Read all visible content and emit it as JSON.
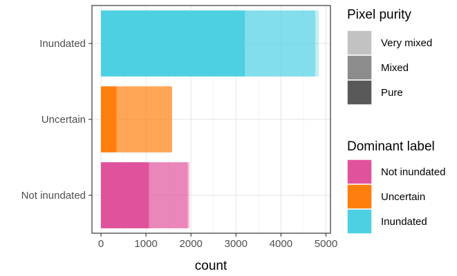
{
  "chart_data": {
    "type": "bar",
    "orientation": "horizontal",
    "stacked": true,
    "categories": [
      "Not inundated",
      "Uncertain",
      "Inundated"
    ],
    "series": [
      {
        "name": "Pure",
        "values": [
          1070,
          350,
          3200
        ]
      },
      {
        "name": "Mixed",
        "values": [
          860,
          1230,
          1560
        ]
      },
      {
        "name": "Very mixed",
        "values": [
          40,
          0,
          80
        ]
      }
    ],
    "xlabel": "count",
    "ylabel": "",
    "xlim": [
      -200,
      5100
    ],
    "xticks": [
      0,
      1000,
      2000,
      3000,
      4000,
      5000
    ],
    "xtick_labels": [
      "0",
      "1000",
      "2000",
      "3000",
      "4000",
      "5000"
    ],
    "grid": true,
    "category_colors": {
      "Not inundated": "#e0529c",
      "Uncertain": "#ff7f0e",
      "Inundated": "#4dd0e1"
    },
    "purity_opacity": {
      "Pure": 1.0,
      "Mixed": 0.7,
      "Very mixed": 0.35
    },
    "legend_placement": "right",
    "legends": [
      {
        "title": "Pixel purity",
        "items": [
          {
            "label": "Very mixed",
            "color": "#c2c2c2"
          },
          {
            "label": "Mixed",
            "color": "#8c8c8c"
          },
          {
            "label": "Pure",
            "color": "#595959"
          }
        ]
      },
      {
        "title": "Dominant label",
        "items": [
          {
            "label": "Not inundated",
            "color": "#e0529c"
          },
          {
            "label": "Uncertain",
            "color": "#ff7f0e"
          },
          {
            "label": "Inundated",
            "color": "#4dd0e1"
          }
        ]
      }
    ]
  }
}
